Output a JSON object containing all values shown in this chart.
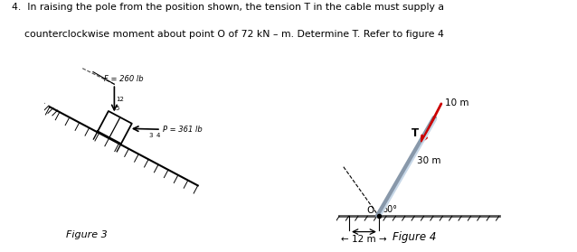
{
  "title_line1": "4.  In raising the pole from the position shown, the tension T in the cable must supply a",
  "title_line2": "    counterclockwise moment about point O of 72 kN – m. Determine T. Refer to figure 4",
  "fig3_label": "Figure 3",
  "fig4_label": "Figure 4",
  "F_label": "F = 260 lb",
  "P_label": "P = 361 lb",
  "T_label": "T",
  "dim_30m": "30 m",
  "dim_10m": "10 m",
  "dim_12m": "← 12 m →",
  "angle_label": "60°",
  "O_label": "O",
  "bg_color": "#ffffff",
  "text_color": "#000000",
  "line_color": "#000000",
  "pole_color": "#7a8fa6",
  "cable_color": "#cc0000",
  "ground_color": "#555555"
}
